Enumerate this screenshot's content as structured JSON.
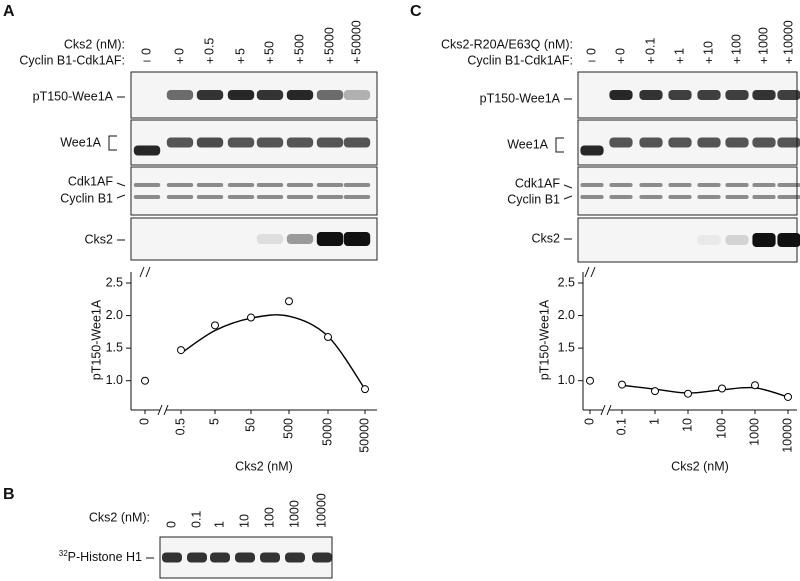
{
  "panels": [
    {
      "label": "A",
      "dose_title": "Cks2 (nM):",
      "doses": [
        "0",
        "0",
        "0.5",
        "5",
        "50",
        "500",
        "5000",
        "50000"
      ],
      "complex_title": "Cyclin B1-Cdk1AF:",
      "complex": [
        "–",
        "+",
        "+",
        "+",
        "+",
        "+",
        "+",
        "+"
      ],
      "blots": [
        "pT150-Wee1A",
        "Wee1A",
        "Cdk1AF",
        "Cyclin B1",
        "Cks2"
      ]
    },
    {
      "label": "B",
      "dose_title": "Cks2 (nM):",
      "doses": [
        "0",
        "0.1",
        "1",
        "10",
        "100",
        "1000",
        "10000"
      ],
      "blots": [
        {
          "isotope": "32",
          "name": "P-Histone H1"
        }
      ]
    },
    {
      "label": "C",
      "dose_title": "Cks2-R20A/E63Q (nM):",
      "doses": [
        "0",
        "0",
        "0.1",
        "1",
        "10",
        "100",
        "1000",
        "10000"
      ],
      "complex_title": "Cyclin B1-Cdk1AF:",
      "complex": [
        "–",
        "+",
        "+",
        "+",
        "+",
        "+",
        "+",
        "+"
      ],
      "blots": [
        "pT150-Wee1A",
        "Wee1A",
        "Cdk1AF",
        "Cyclin B1",
        "Cks2"
      ]
    }
  ],
  "chart_data": [
    {
      "type": "scatter",
      "x_label": "Cks2 (nM)",
      "y_label": "pT150-Wee1A",
      "categories": [
        "0",
        "0.5",
        "5",
        "50",
        "500",
        "5000",
        "50000"
      ],
      "values": [
        1.0,
        1.47,
        1.85,
        1.97,
        2.22,
        1.67,
        0.87
      ],
      "fit_values": [
        null,
        1.42,
        1.77,
        1.96,
        1.99,
        1.68,
        0.87
      ],
      "ylim": [
        0.55,
        2.5
      ],
      "yticks": [
        {
          "value": 1,
          "label": "1.0"
        },
        {
          "value": 1.5,
          "label": "1.5"
        },
        {
          "value": 2,
          "label": "2.0"
        },
        {
          "value": 2.5,
          "label": "2.5"
        }
      ],
      "color": "#000000"
    },
    {
      "type": "scatter",
      "x_label": "Cks2 (nM)",
      "y_label": "pT150-Wee1A",
      "categories": [
        "0",
        "0.1",
        "1",
        "10",
        "100",
        "1000",
        "10000"
      ],
      "values": [
        1.0,
        0.94,
        0.84,
        0.8,
        0.88,
        0.93,
        0.75
      ],
      "fit_values": [
        null,
        0.93,
        0.87,
        0.81,
        0.86,
        0.89,
        0.75
      ],
      "ylim": [
        0.55,
        2.5
      ],
      "yticks": [
        {
          "value": 1,
          "label": "1.0"
        },
        {
          "value": 1.5,
          "label": "1.5"
        },
        {
          "value": 2,
          "label": "2.0"
        },
        {
          "value": 2.5,
          "label": "2.5"
        }
      ],
      "color": "#000000"
    }
  ]
}
